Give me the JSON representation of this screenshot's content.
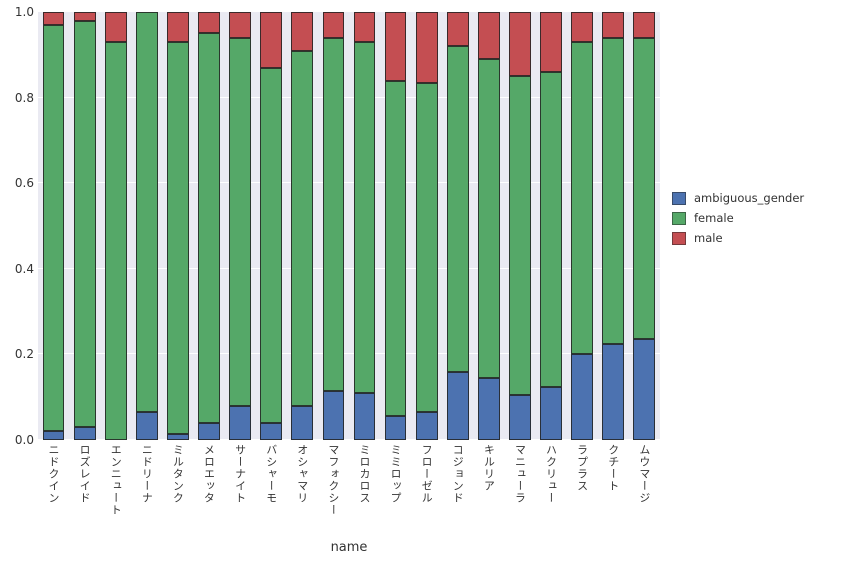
{
  "chart_data": {
    "type": "bar",
    "stacked": true,
    "title": "",
    "xlabel": "name",
    "ylabel": "",
    "ylim": [
      0.0,
      1.0
    ],
    "yticks": [
      0.0,
      0.2,
      0.4,
      0.6,
      0.8,
      1.0
    ],
    "grid": true,
    "plot_bg_color": "#EAEAF2",
    "grid_color": "#FFFFFF",
    "legend_position": "right-outside",
    "categories": [
      "ニドクイン",
      "ロズレイド",
      "エンニュート",
      "ニドリーナ",
      "ミルタンク",
      "メロエッタ",
      "サーナイト",
      "バシャーモ",
      "オシャマリ",
      "マフォクシー",
      "ミロカロス",
      "ミミロップ",
      "フローゼル",
      "コジョンド",
      "キルリア",
      "マニューラ",
      "ハクリュー",
      "ラプラス",
      "クチート",
      "ムウマージ"
    ],
    "series": [
      {
        "name": "ambiguous_gender",
        "color": "#4C72B0",
        "values": [
          0.02,
          0.03,
          0.0,
          0.065,
          0.015,
          0.04,
          0.08,
          0.04,
          0.08,
          0.115,
          0.11,
          0.055,
          0.065,
          0.16,
          0.145,
          0.105,
          0.125,
          0.2,
          0.225,
          0.235
        ]
      },
      {
        "name": "female",
        "color": "#55A868",
        "values": [
          0.95,
          0.95,
          0.93,
          0.935,
          0.915,
          0.91,
          0.86,
          0.83,
          0.83,
          0.825,
          0.82,
          0.785,
          0.77,
          0.76,
          0.745,
          0.745,
          0.735,
          0.73,
          0.715,
          0.705
        ]
      },
      {
        "name": "male",
        "color": "#C44E52",
        "values": [
          0.03,
          0.02,
          0.07,
          0.0,
          0.07,
          0.05,
          0.06,
          0.13,
          0.09,
          0.06,
          0.07,
          0.16,
          0.165,
          0.08,
          0.11,
          0.15,
          0.14,
          0.07,
          0.06,
          0.06
        ]
      }
    ]
  }
}
